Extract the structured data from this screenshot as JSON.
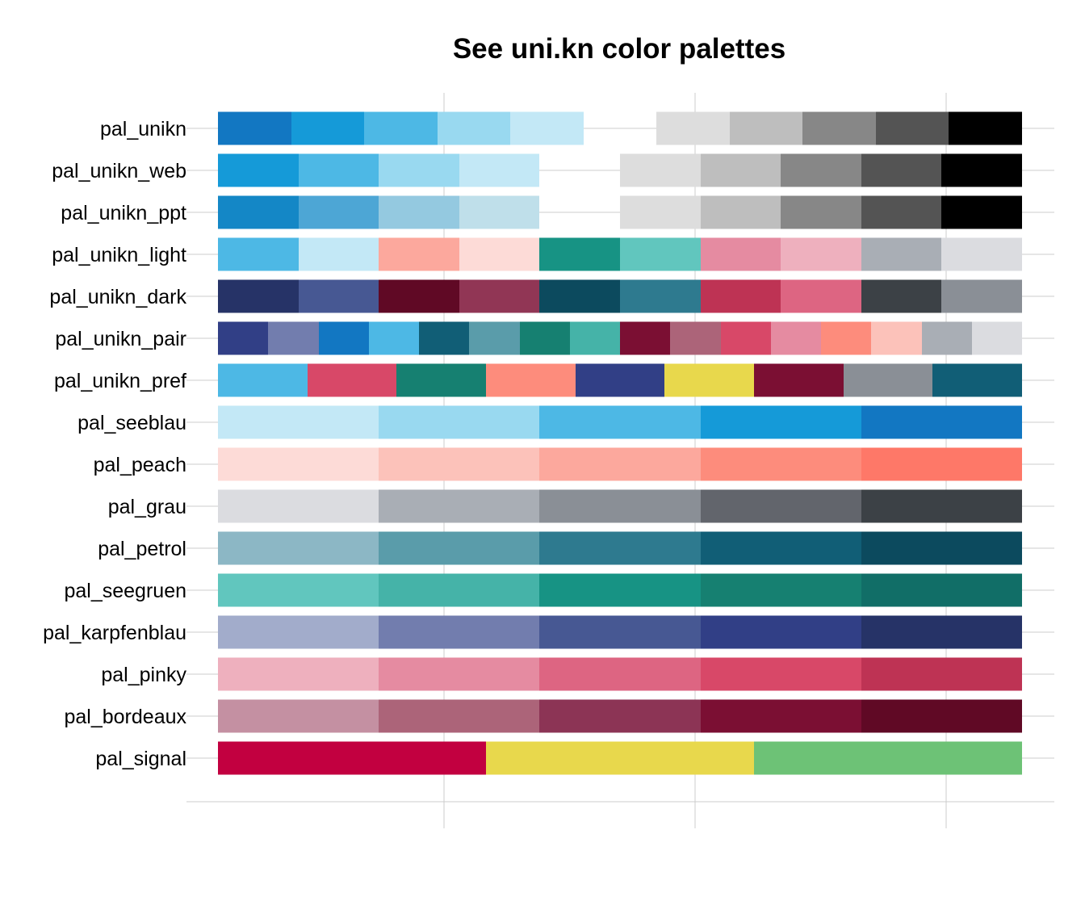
{
  "chart_data": {
    "type": "bar",
    "title": "See uni.kn color palettes",
    "xlabel": "",
    "ylabel": "",
    "grid": true,
    "legend": "none",
    "palettes": [
      {
        "name": "pal_unikn",
        "slots": 11,
        "colors": [
          "#1277C2",
          "#159AD8",
          "#4DB8E5",
          "#99D9F0",
          "#C3E8F6",
          null,
          "#DDDDDD",
          "#BEBEBE",
          "#878787",
          "#545454",
          "#000000"
        ]
      },
      {
        "name": "pal_unikn_web",
        "slots": 10,
        "colors": [
          "#159AD8",
          "#4DB8E5",
          "#99D9F0",
          "#C3E8F6",
          null,
          "#DDDDDD",
          "#BEBEBE",
          "#878787",
          "#545454",
          "#000000"
        ]
      },
      {
        "name": "pal_unikn_ppt",
        "slots": 10,
        "colors": [
          "#1487C6",
          "#4DA6D5",
          "#94C9E0",
          "#BFDFEA",
          null,
          "#DDDDDD",
          "#BEBEBE",
          "#878787",
          "#545454",
          "#000000"
        ]
      },
      {
        "name": "pal_unikn_light",
        "slots": 10,
        "colors": [
          "#4DB8E5",
          "#C3E8F6",
          "#FCA89D",
          "#FDDBD7",
          "#179384",
          "#61C6BE",
          "#E58BA1",
          "#EEB0BE",
          "#A9AEB5",
          "#DBDCE0"
        ]
      },
      {
        "name": "pal_unikn_dark",
        "slots": 10,
        "colors": [
          "#263367",
          "#475893",
          "#600925",
          "#913655",
          "#0C4A5E",
          "#2E7A8F",
          "#BE3354",
          "#DD6582",
          "#3C4146",
          "#8A8F96"
        ]
      },
      {
        "name": "pal_unikn_pair",
        "slots": 16,
        "colors": [
          "#313F86",
          "#727DAE",
          "#1277C2",
          "#4DB8E5",
          "#115E76",
          "#5A9CAA",
          "#168071",
          "#45B3A8",
          "#7B0F33",
          "#AC6479",
          "#D84868",
          "#E58BA1",
          "#FD8C7C",
          "#FCC2BA",
          "#A9AEB5",
          "#DBDCE0"
        ]
      },
      {
        "name": "pal_unikn_pref",
        "slots": 9,
        "colors": [
          "#4DB8E5",
          "#D84868",
          "#168071",
          "#FD8C7C",
          "#313F86",
          "#E8D84C",
          "#7B0F33",
          "#8A8F96",
          "#115E76"
        ]
      },
      {
        "name": "pal_seeblau",
        "slots": 5,
        "colors": [
          "#C3E8F6",
          "#99D9F0",
          "#4DB8E5",
          "#159AD8",
          "#1277C2"
        ]
      },
      {
        "name": "pal_peach",
        "slots": 5,
        "colors": [
          "#FDDBD7",
          "#FCC2BA",
          "#FCA89D",
          "#FD8C7C",
          "#FE7868"
        ]
      },
      {
        "name": "pal_grau",
        "slots": 5,
        "colors": [
          "#DBDCE0",
          "#A9AEB5",
          "#8A8F96",
          "#62656C",
          "#3C4146"
        ]
      },
      {
        "name": "pal_petrol",
        "slots": 5,
        "colors": [
          "#8CB7C5",
          "#5A9CAA",
          "#2E7A8F",
          "#115E76",
          "#0C4A5E"
        ]
      },
      {
        "name": "pal_seegruen",
        "slots": 5,
        "colors": [
          "#61C6BE",
          "#45B3A8",
          "#179384",
          "#168071",
          "#116E67"
        ]
      },
      {
        "name": "pal_karpfenblau",
        "slots": 5,
        "colors": [
          "#A2ACCB",
          "#727DAE",
          "#475893",
          "#313F86",
          "#263367"
        ]
      },
      {
        "name": "pal_pinky",
        "slots": 5,
        "colors": [
          "#EEB0BE",
          "#E58BA1",
          "#DD6582",
          "#D84868",
          "#BE3354"
        ]
      },
      {
        "name": "pal_bordeaux",
        "slots": 5,
        "colors": [
          "#C490A2",
          "#AC6479",
          "#8C3455",
          "#7B0F33",
          "#600925"
        ]
      },
      {
        "name": "pal_signal",
        "slots": 3,
        "colors": [
          "#C20040",
          "#E8D84C",
          "#6DC276"
        ]
      }
    ]
  }
}
